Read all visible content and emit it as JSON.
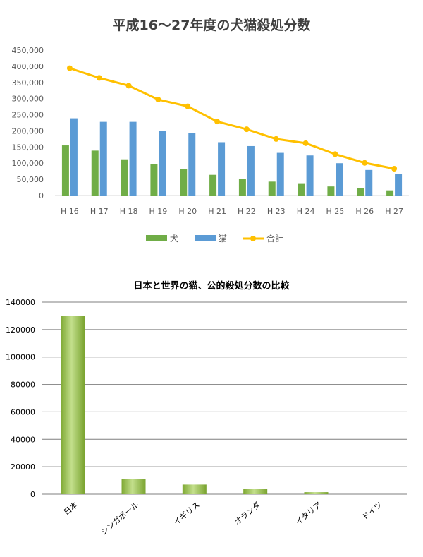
{
  "chart_data": [
    {
      "type": "bar",
      "title": "平成16～27年度の犬猫殺処分数",
      "xlabel": "",
      "ylabel": "",
      "categories": [
        "H 16",
        "H 17",
        "H 18",
        "H 19",
        "H 20",
        "H 21",
        "H 22",
        "H 23",
        "H 24",
        "H 25",
        "H 26",
        "H 27"
      ],
      "series": [
        {
          "name": "犬",
          "type": "bar",
          "color": "#70ad47",
          "values": [
            155000,
            139000,
            112000,
            97000,
            82000,
            64000,
            52000,
            43000,
            38000,
            28000,
            22000,
            16000
          ]
        },
        {
          "name": "猫",
          "type": "bar",
          "color": "#5b9bd5",
          "values": [
            239000,
            228000,
            228000,
            200000,
            194000,
            165000,
            153000,
            132000,
            124000,
            100000,
            79000,
            67000
          ]
        },
        {
          "name": "合計",
          "type": "line",
          "color": "#ffc000",
          "values": [
            394000,
            364000,
            340000,
            297000,
            276000,
            229000,
            205000,
            175000,
            162000,
            128000,
            101000,
            83000
          ]
        }
      ],
      "yticks": [
        "0",
        "50,000",
        "100,000",
        "150,000",
        "200,000",
        "250,000",
        "300,000",
        "350,000",
        "400,000",
        "450,000"
      ],
      "ylim": [
        0,
        450000
      ],
      "grid": false,
      "legend": "bottom"
    },
    {
      "type": "bar",
      "title": "日本と世界の猫、公的殺処分数の比較",
      "xlabel": "",
      "ylabel": "",
      "categories": [
        "日本",
        "シンガポール",
        "イギリス",
        "オランダ",
        "イタリア",
        "ドイツ"
      ],
      "values": [
        130000,
        11000,
        7000,
        4000,
        1500,
        0
      ],
      "yticks": [
        "0",
        "20000",
        "40000",
        "60000",
        "80000",
        "100000",
        "120000",
        "140000"
      ],
      "ylim": [
        0,
        140000
      ],
      "grid": true,
      "legend": "none"
    }
  ]
}
